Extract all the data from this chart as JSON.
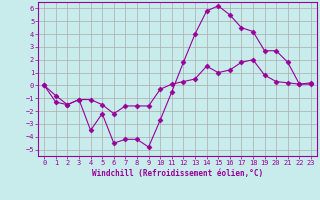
{
  "xlabel": "Windchill (Refroidissement éolien,°C)",
  "bg_color": "#c8ecec",
  "line_color": "#990099",
  "grid_color": "#aaaaaa",
  "xlim": [
    -0.5,
    23.5
  ],
  "ylim": [
    -5.5,
    6.5
  ],
  "yticks": [
    -5,
    -4,
    -3,
    -2,
    -1,
    0,
    1,
    2,
    3,
    4,
    5,
    6
  ],
  "xticks": [
    0,
    1,
    2,
    3,
    4,
    5,
    6,
    7,
    8,
    9,
    10,
    11,
    12,
    13,
    14,
    15,
    16,
    17,
    18,
    19,
    20,
    21,
    22,
    23
  ],
  "curve1_x": [
    0,
    1,
    2,
    3,
    4,
    5,
    6,
    7,
    8,
    9,
    10,
    11,
    12,
    13,
    14,
    15,
    16,
    17,
    18,
    19,
    20,
    21,
    22,
    23
  ],
  "curve1_y": [
    0.0,
    -1.3,
    -1.5,
    -1.1,
    -3.5,
    -2.2,
    -4.5,
    -4.2,
    -4.2,
    -4.8,
    -2.7,
    -0.5,
    1.8,
    4.0,
    5.8,
    6.2,
    5.5,
    4.5,
    4.2,
    2.7,
    2.7,
    1.8,
    0.1,
    0.2
  ],
  "curve2_x": [
    0,
    1,
    2,
    3,
    4,
    5,
    6,
    7,
    8,
    9,
    10,
    11,
    12,
    13,
    14,
    15,
    16,
    17,
    18,
    19,
    20,
    21,
    22,
    23
  ],
  "curve2_y": [
    0.0,
    -0.8,
    -1.5,
    -1.1,
    -1.1,
    -1.5,
    -2.2,
    -1.6,
    -1.6,
    -1.6,
    -0.3,
    0.1,
    0.3,
    0.5,
    1.5,
    1.0,
    1.2,
    1.8,
    2.0,
    0.8,
    0.3,
    0.2,
    0.1,
    0.1
  ],
  "marker": "D",
  "markersize": 2.5
}
